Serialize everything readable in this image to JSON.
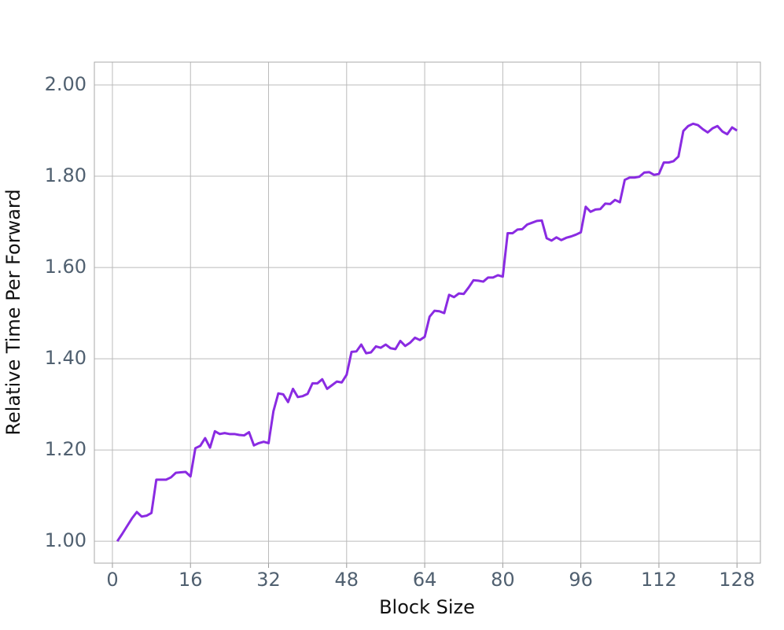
{
  "chart_data": {
    "type": "line",
    "x_label": "Block Size",
    "y_label": "Relative Time Per Forward",
    "x": [
      1,
      2,
      3,
      4,
      5,
      6,
      7,
      8,
      9,
      10,
      11,
      12,
      13,
      14,
      15,
      16,
      17,
      18,
      19,
      20,
      21,
      22,
      23,
      24,
      25,
      26,
      27,
      28,
      29,
      30,
      31,
      32,
      33,
      34,
      35,
      36,
      37,
      38,
      39,
      40,
      41,
      42,
      43,
      44,
      45,
      46,
      47,
      48,
      49,
      50,
      51,
      52,
      53,
      54,
      55,
      56,
      57,
      58,
      59,
      60,
      61,
      62,
      63,
      64,
      65,
      66,
      67,
      68,
      69,
      70,
      71,
      72,
      73,
      74,
      75,
      76,
      77,
      78,
      79,
      80,
      81,
      82,
      83,
      84,
      85,
      86,
      87,
      88,
      89,
      90,
      91,
      92,
      93,
      94,
      95,
      96,
      97,
      98,
      99,
      100,
      101,
      102,
      103,
      104,
      105,
      106,
      107,
      108,
      109,
      110,
      111,
      112,
      113,
      114,
      115,
      116,
      117,
      118,
      119,
      120,
      121,
      122,
      123,
      124,
      125,
      126,
      127,
      128
    ],
    "values": [
      1.0,
      1.016,
      1.033,
      1.05,
      1.064,
      1.054,
      1.056,
      1.062,
      1.135,
      1.135,
      1.135,
      1.14,
      1.15,
      1.151,
      1.152,
      1.142,
      1.204,
      1.209,
      1.226,
      1.205,
      1.241,
      1.235,
      1.237,
      1.235,
      1.235,
      1.233,
      1.232,
      1.239,
      1.21,
      1.215,
      1.218,
      1.215,
      1.285,
      1.324,
      1.322,
      1.305,
      1.334,
      1.316,
      1.318,
      1.323,
      1.346,
      1.346,
      1.355,
      1.334,
      1.342,
      1.35,
      1.348,
      1.365,
      1.415,
      1.416,
      1.431,
      1.412,
      1.414,
      1.427,
      1.424,
      1.431,
      1.423,
      1.421,
      1.439,
      1.428,
      1.435,
      1.446,
      1.441,
      1.448,
      1.492,
      1.505,
      1.504,
      1.5,
      1.54,
      1.535,
      1.543,
      1.542,
      1.556,
      1.572,
      1.571,
      1.569,
      1.578,
      1.578,
      1.583,
      1.58,
      1.675,
      1.675,
      1.683,
      1.684,
      1.694,
      1.698,
      1.702,
      1.703,
      1.664,
      1.659,
      1.666,
      1.66,
      1.665,
      1.668,
      1.672,
      1.677,
      1.733,
      1.722,
      1.727,
      1.728,
      1.74,
      1.739,
      1.748,
      1.743,
      1.792,
      1.797,
      1.797,
      1.799,
      1.808,
      1.809,
      1.803,
      1.805,
      1.83,
      1.83,
      1.833,
      1.843,
      1.899,
      1.91,
      1.915,
      1.912,
      1.903,
      1.896,
      1.905,
      1.91,
      1.898,
      1.892,
      1.907,
      1.9
    ],
    "color": "#8a2be2",
    "xlim": [
      -3.7,
      132.8
    ],
    "ylim": [
      0.952,
      2.05
    ],
    "xticks": [
      0,
      16,
      32,
      48,
      64,
      80,
      96,
      112,
      128
    ],
    "yticks": [
      {
        "value": 1,
        "label": "1.00"
      },
      {
        "value": 1.2,
        "label": "1.20"
      },
      {
        "value": 1.4,
        "label": "1.40"
      },
      {
        "value": 1.6,
        "label": "1.60"
      },
      {
        "value": 1.8,
        "label": "1.80"
      },
      {
        "value": 2,
        "label": "2.00"
      }
    ],
    "grid": true
  }
}
